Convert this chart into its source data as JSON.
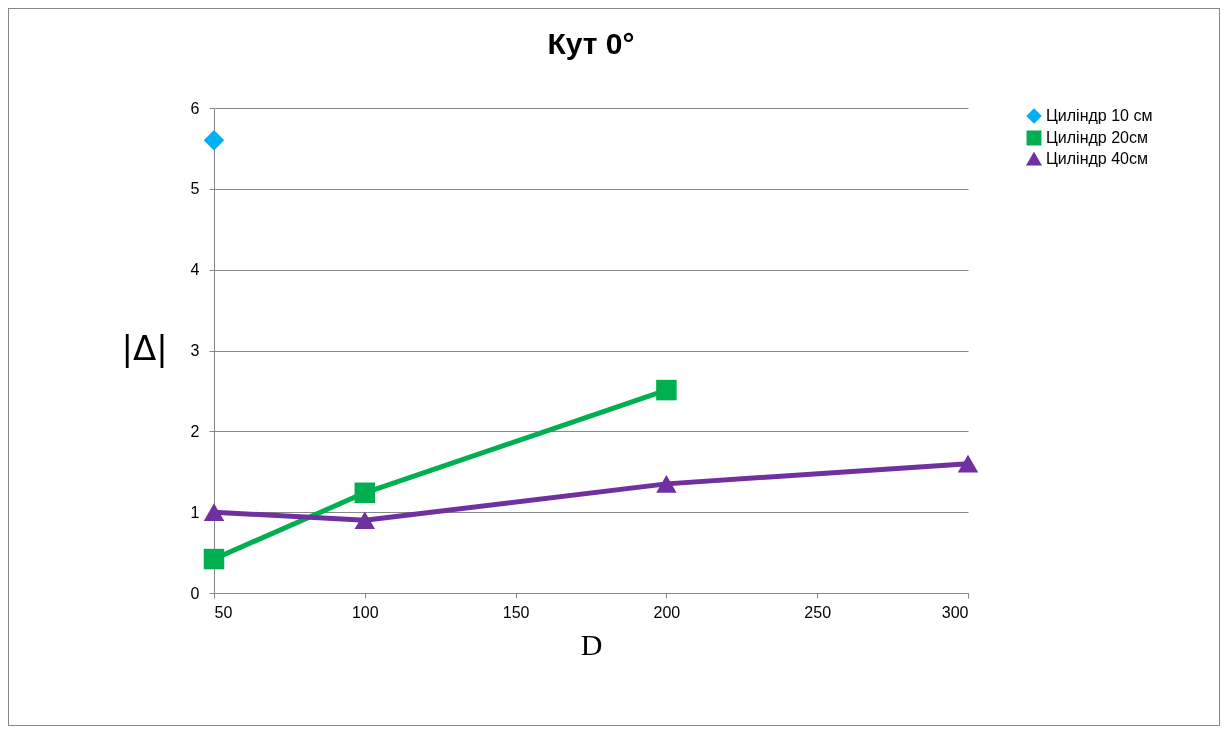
{
  "chart_data": {
    "type": "line",
    "title": "Кут 0°",
    "xlabel": "D",
    "ylabel": "|Δ|",
    "xlim": [
      50,
      300
    ],
    "xticks": [
      50,
      100,
      150,
      200,
      250,
      300
    ],
    "ylim": [
      0,
      6
    ],
    "yticks": [
      0,
      1,
      2,
      3,
      4,
      5,
      6
    ],
    "grid": "y",
    "legend": "right",
    "series": [
      {
        "name": "Циліндр 10 см",
        "color": "#00b0f0",
        "marker": "diamond",
        "x": [
          50
        ],
        "values": [
          5.6
        ]
      },
      {
        "name": "Циліндр 20см",
        "color": "#00b050",
        "marker": "square",
        "x": [
          50,
          100,
          200
        ],
        "values": [
          0.42,
          1.24,
          2.51
        ]
      },
      {
        "name": "Циліндр 40см",
        "color": "#7030a0",
        "marker": "triangle",
        "x": [
          50,
          100,
          200,
          300
        ],
        "values": [
          1.0,
          0.9,
          1.35,
          1.6
        ]
      }
    ]
  }
}
